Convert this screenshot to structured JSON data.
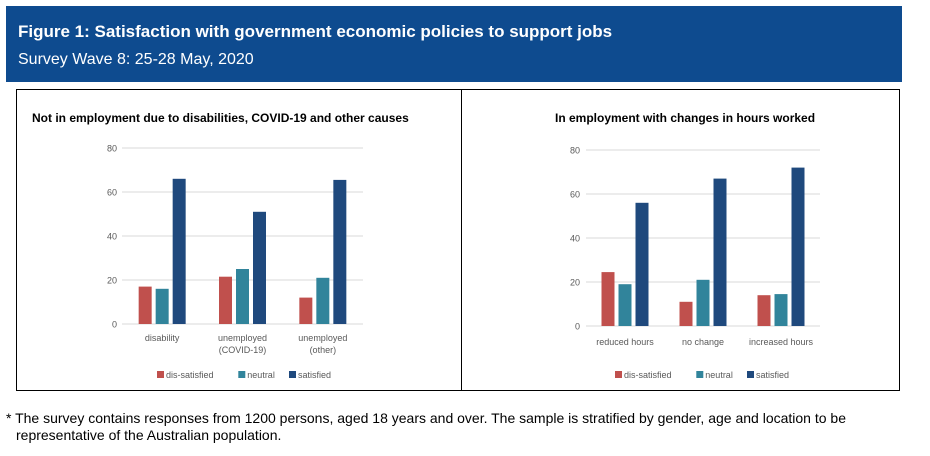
{
  "header": {
    "title": "Figure 1: Satisfaction with government economic policies to support jobs",
    "subtitle": "Survey Wave 8: 25-28 May, 2020"
  },
  "colors": {
    "header_bg": "#0e4b8f",
    "dis_satisfied": "#c0504d",
    "neutral": "#31849b",
    "satisfied": "#1f497d",
    "gridline": "#d9d9d9",
    "axis_text": "#595959"
  },
  "chart_data": [
    {
      "type": "bar",
      "title": "Not in employment due to disabilities, COVID-19 and other causes",
      "categories": [
        [
          "disability"
        ],
        [
          "unemployed",
          "(COVID-19)"
        ],
        [
          "unemployed",
          "(other)"
        ]
      ],
      "series": [
        {
          "name": "dis-satisfied",
          "values": [
            17,
            21.5,
            12
          ]
        },
        {
          "name": "neutral",
          "values": [
            16,
            25,
            21
          ]
        },
        {
          "name": "satisfied",
          "values": [
            66,
            51,
            65.5
          ]
        }
      ],
      "ylim": [
        0,
        80
      ],
      "yticks": [
        0,
        20,
        40,
        60,
        80
      ],
      "xlabel": "",
      "ylabel": "",
      "legend": "bottom"
    },
    {
      "type": "bar",
      "title": "In employment with changes in hours worked",
      "categories": [
        [
          "reduced hours"
        ],
        [
          "no change"
        ],
        [
          "increased hours"
        ]
      ],
      "series": [
        {
          "name": "dis-satisfied",
          "values": [
            24.5,
            11,
            14
          ]
        },
        {
          "name": "neutral",
          "values": [
            19,
            21,
            14.5
          ]
        },
        {
          "name": "satisfied",
          "values": [
            56,
            67,
            72
          ]
        }
      ],
      "ylim": [
        0,
        80
      ],
      "yticks": [
        0,
        20,
        40,
        60,
        80
      ],
      "xlabel": "",
      "ylabel": "",
      "legend": "bottom"
    }
  ],
  "footnote": {
    "line1": "* The survey contains responses from 1200 persons, aged 18 years and over.  The sample is stratified by gender, age and location to be",
    "line2": "representative of the Australian population."
  }
}
